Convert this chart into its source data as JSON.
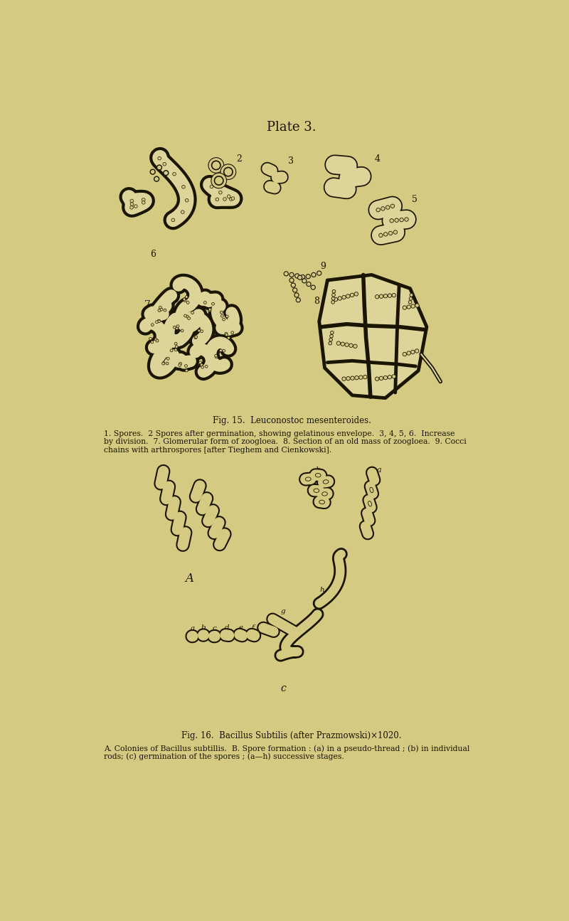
{
  "bg_color": "#d4ca82",
  "title": "Plate 3.",
  "title_fontsize": 13,
  "fig15_caption": "Fig. 15.  Leuconostoc mesenteroides.",
  "fig15_text1": "1. Spores.  2 Spores after germination, showing gelatinous envelope.  3, 4, 5, 6.  Increase",
  "fig15_text2": "by division.  7. Glomerular form of zoogloea.  8. Section of an old mass of zoogloea.  9. Cocci",
  "fig15_text3": "chains with arthrospores [after Tieghem and Cienkowski].",
  "fig16_caption": "Fig. 16.  Bacillus Subtilis (after Prazmowski)×1020.",
  "fig16_text1": "A. Colonies of Bacillus subtillis.  B. Spore formation : (a) in a pseudo-thread ; (b) in individual",
  "fig16_text2": "rods; (c) germination of the spores ; (a—h) successive stages.",
  "ink_color": "#1a1500",
  "light_fill": "#ddd49a",
  "medium_fill": "#c8b860",
  "rod_fill": "#d8ce8a"
}
